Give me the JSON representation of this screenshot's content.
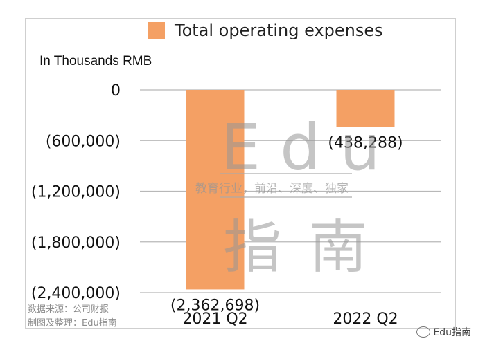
{
  "chart_data": {
    "type": "bar",
    "categories": [
      "2021 Q2",
      "2022 Q2"
    ],
    "series": [
      {
        "name": "Total operating expenses",
        "values": [
          -2362698,
          -438288
        ],
        "color": "#f4a064"
      }
    ],
    "data_labels": [
      "(2,362,698)",
      "(438,288)"
    ],
    "ylabel": "In Thousands RMB",
    "ylim": [
      -2400000,
      0
    ],
    "yticks": [
      0,
      -600000,
      -1200000,
      -1800000,
      -2400000
    ],
    "ytick_labels": [
      "0",
      "(600,000)",
      "(1,200,000)",
      "(1,800,000)",
      "(2,400,000)"
    ],
    "grid": true,
    "legend": "top"
  },
  "watermark": {
    "title": "Edu",
    "subtitle": "教育行业，前沿、深度、独家",
    "name": "指南",
    "corner": "Edu指南"
  },
  "source": {
    "line1": "数据来源：公司财报",
    "line2": "制图及整理：Edu指南"
  }
}
